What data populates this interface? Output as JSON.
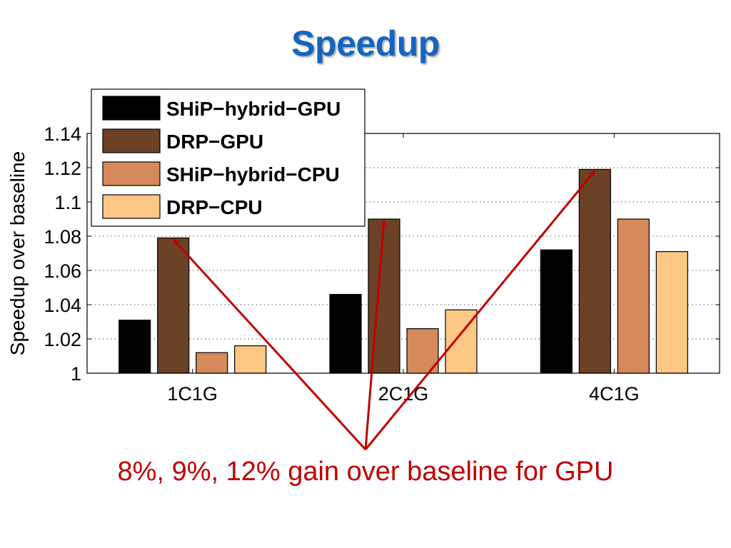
{
  "slide": {
    "title": "Speedup",
    "caption": "8%, 9%, 12% gain over baseline for GPU"
  },
  "chart_data": {
    "type": "bar",
    "title": "",
    "xlabel": "",
    "ylabel": "Speedup over baseline",
    "categories": [
      "1C1G",
      "2C1G",
      "4C1G"
    ],
    "ylim": [
      1,
      1.14
    ],
    "yticks": [
      1,
      1.02,
      1.04,
      1.06,
      1.08,
      1.1,
      1.12,
      1.14
    ],
    "ytick_labels": [
      "1",
      "1.02",
      "1.04",
      "1.06",
      "1.08",
      "1.1",
      "1.12",
      "1.14"
    ],
    "grid": "horizontal dotted",
    "legend_position": "top-left",
    "series": [
      {
        "name": "SHiP−hybrid−GPU",
        "color": "#000000",
        "values": [
          1.031,
          1.046,
          1.072
        ]
      },
      {
        "name": "DRP−GPU",
        "color": "#6b4226",
        "values": [
          1.079,
          1.09,
          1.119
        ]
      },
      {
        "name": "SHiP−hybrid−CPU",
        "color": "#d6895a",
        "values": [
          1.012,
          1.026,
          1.09
        ]
      },
      {
        "name": "DRP−CPU",
        "color": "#fdc784",
        "values": [
          1.016,
          1.037,
          1.071
        ]
      }
    ],
    "annotation": {
      "color": "#c00000",
      "targets": [
        {
          "category": "1C1G",
          "series": "DRP−GPU"
        },
        {
          "category": "2C1G",
          "series": "DRP−GPU"
        },
        {
          "category": "4C1G",
          "series": "DRP−GPU"
        }
      ]
    }
  }
}
